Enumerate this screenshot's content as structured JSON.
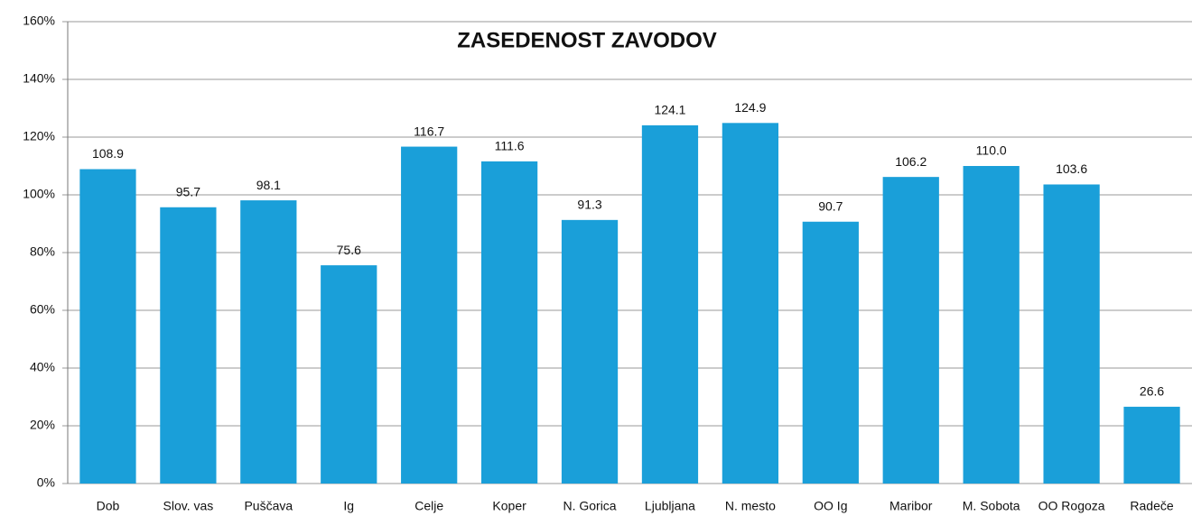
{
  "chart_data": {
    "type": "bar",
    "title": "ZASEDENOST ZAVODOV",
    "categories": [
      "Dob",
      "Slov. vas",
      "Puščava",
      "Ig",
      "Celje",
      "Koper",
      "N. Gorica",
      "Ljubljana",
      "N. mesto",
      "OO Ig",
      "Maribor",
      "M. Sobota",
      "OO Rogoza",
      "Radeče"
    ],
    "values": [
      108.9,
      95.7,
      98.1,
      75.6,
      116.7,
      111.6,
      91.3,
      124.1,
      124.9,
      90.7,
      106.2,
      110.0,
      103.6,
      26.6
    ],
    "value_labels": [
      "108.9",
      "95.7",
      "98.1",
      "75.6",
      "116.7",
      "111.6",
      "91.3",
      "124.1",
      "124.9",
      "90.7",
      "106.2",
      "110.0",
      "103.6",
      "26.6"
    ],
    "color": "#1a9fd9",
    "ylim": [
      0,
      160
    ],
    "yticks": [
      {
        "value": 0,
        "label": "0%"
      },
      {
        "value": 20,
        "label": "20%"
      },
      {
        "value": 40,
        "label": "40%"
      },
      {
        "value": 60,
        "label": "60%"
      },
      {
        "value": 80,
        "label": "80%"
      },
      {
        "value": 100,
        "label": "100%"
      },
      {
        "value": 120,
        "label": "120%"
      },
      {
        "value": 140,
        "label": "140%"
      },
      {
        "value": 160,
        "label": "160%"
      }
    ],
    "grid": true
  }
}
